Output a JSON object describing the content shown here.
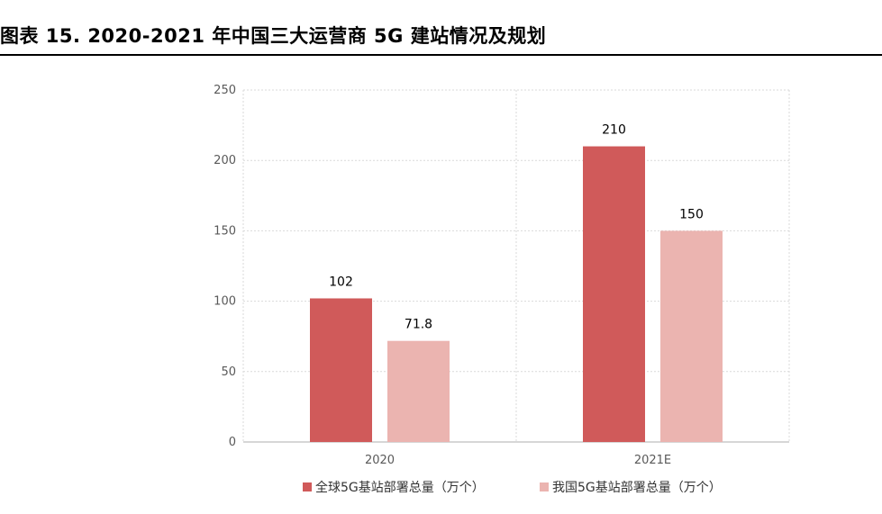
{
  "title": "图表 15. 2020-2021 年中国三大运营商 5G 建站情况及规划",
  "colors": {
    "series1": "#d05a5a",
    "series2": "#ebb4b0",
    "grid": "#d9d9d9",
    "axis": "#bfbfbf"
  },
  "chart_data": {
    "type": "bar",
    "categories": [
      "2020",
      "2021E"
    ],
    "series": [
      {
        "name": "全球5G基站部署总量（万个）",
        "values": [
          102,
          210
        ],
        "labels": [
          "102",
          "210"
        ]
      },
      {
        "name": "我国5G基站部署总量（万个）",
        "values": [
          71.8,
          150
        ],
        "labels": [
          "71.8",
          "150"
        ]
      }
    ],
    "yticks": [
      "0",
      "50",
      "100",
      "150",
      "200",
      "250"
    ],
    "ylim": [
      0,
      250
    ],
    "grid": true,
    "legend": "bottom"
  }
}
